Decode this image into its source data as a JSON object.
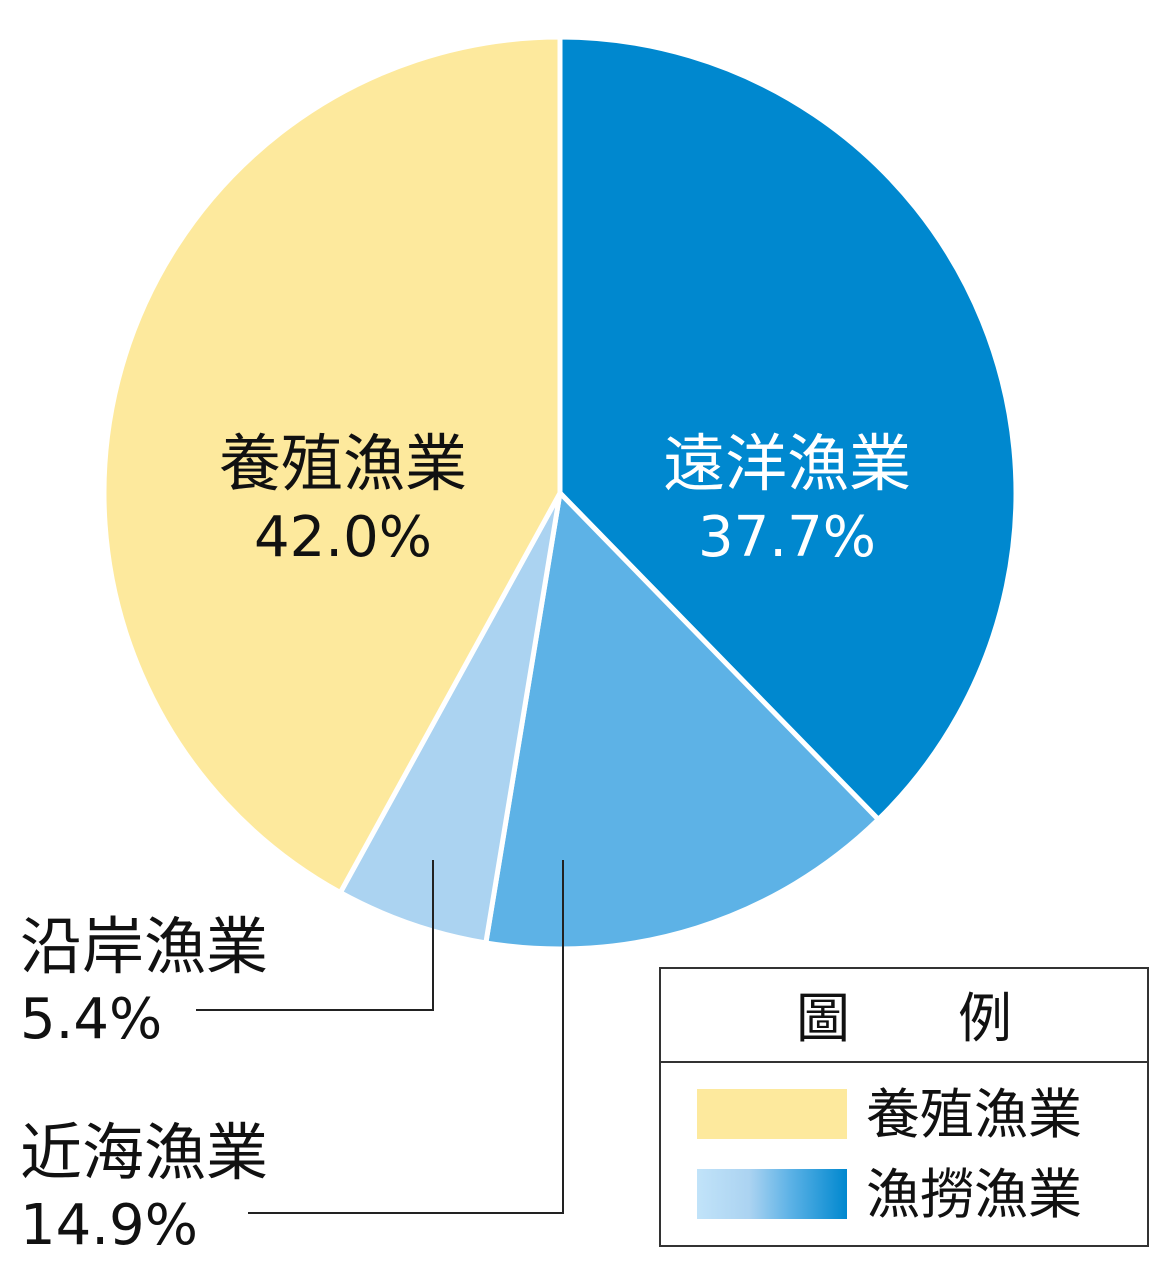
{
  "chart_data": {
    "type": "pie",
    "start_angle_deg": 0,
    "direction": "clockwise",
    "slices": [
      {
        "name": "遠洋漁業",
        "value": 37.7,
        "label": "37.7%",
        "color": "#0088cf"
      },
      {
        "name": "近海漁業",
        "value": 14.9,
        "label": "14.9%",
        "color": "#5db2e6"
      },
      {
        "name": "沿岸漁業",
        "value": 5.4,
        "label": "5.4%",
        "color": "#abd3f1"
      },
      {
        "name": "養殖漁業",
        "value": 42.0,
        "label": "42.0%",
        "color": "#fde99d"
      }
    ],
    "legend": {
      "title": "圖　　例",
      "items": [
        {
          "label": "養殖漁業",
          "swatch": "#fde99d"
        },
        {
          "label": "漁撈漁業",
          "swatch_gradient": [
            "#c1e3f9",
            "#abd3f1",
            "#5db2e6",
            "#0088cf"
          ]
        }
      ],
      "position": "bottom-right"
    }
  }
}
